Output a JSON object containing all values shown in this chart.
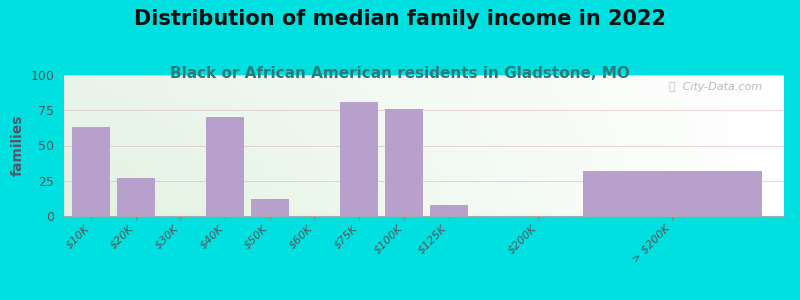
{
  "title": "Distribution of median family income in 2022",
  "subtitle": "Black or African American residents in Gladstone, MO",
  "ylabel": "families",
  "categories": [
    "$10K",
    "$20K",
    "$30K",
    "$40K",
    "$50K",
    "$60K",
    "$75K",
    "$100K",
    "$125K",
    "$200K",
    "> $200K"
  ],
  "values": [
    63,
    27,
    0,
    70,
    12,
    0,
    81,
    76,
    8,
    0,
    32
  ],
  "bar_color": "#b8a0cc",
  "bg_color_outer": "#00e0e0",
  "ylim": [
    0,
    100
  ],
  "yticks": [
    0,
    25,
    50,
    75,
    100
  ],
  "watermark": "ⓘ  City-Data.com",
  "title_fontsize": 15,
  "subtitle_fontsize": 11,
  "ylabel_fontsize": 10,
  "tick_fontsize": 8,
  "grid_color": "#d0a0a0",
  "grid_alpha": 0.5
}
